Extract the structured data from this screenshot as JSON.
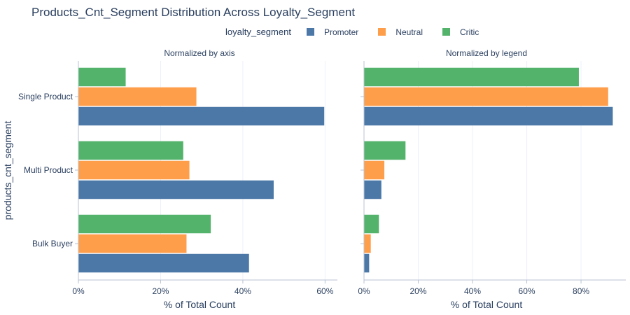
{
  "title": "Products_Cnt_Segment Distribution Across Loyalty_Segment",
  "legend": {
    "title": "loyalty_segment",
    "items": [
      {
        "name": "Promoter",
        "color": "#4c78a8"
      },
      {
        "name": "Neutral",
        "color": "#ff9e4a"
      },
      {
        "name": "Critic",
        "color": "#54b36b"
      }
    ]
  },
  "chart_data": [
    {
      "type": "bar",
      "orientation": "horizontal",
      "subtitle": "Normalized by axis",
      "categories": [
        "Single Product",
        "Multi Product",
        "Bulk Buyer"
      ],
      "series": [
        {
          "name": "Promoter",
          "values": [
            59.8,
            47.5,
            41.5
          ]
        },
        {
          "name": "Neutral",
          "values": [
            28.7,
            27.0,
            26.3
          ]
        },
        {
          "name": "Critic",
          "values": [
            11.5,
            25.5,
            32.2
          ]
        }
      ],
      "xlabel": "% of Total Count",
      "ylabel": "products_cnt_segment",
      "xlim": [
        0,
        63
      ],
      "xticks": [
        0,
        20,
        40,
        60
      ],
      "xtick_labels": [
        "0%",
        "20%",
        "40%",
        "60%"
      ]
    },
    {
      "type": "bar",
      "orientation": "horizontal",
      "subtitle": "Normalized by legend",
      "categories": [
        "Single Product",
        "Multi Product",
        "Bulk Buyer"
      ],
      "series": [
        {
          "name": "Promoter",
          "values": [
            91.7,
            6.4,
            1.9
          ]
        },
        {
          "name": "Neutral",
          "values": [
            90.0,
            7.5,
            2.5
          ]
        },
        {
          "name": "Critic",
          "values": [
            79.2,
            15.3,
            5.5
          ]
        }
      ],
      "xlabel": "% of Total Count",
      "ylabel": "",
      "xlim": [
        0,
        96.5
      ],
      "xticks": [
        0,
        20,
        40,
        60,
        80
      ],
      "xtick_labels": [
        "0%",
        "20%",
        "40%",
        "60%",
        "80%"
      ]
    }
  ]
}
